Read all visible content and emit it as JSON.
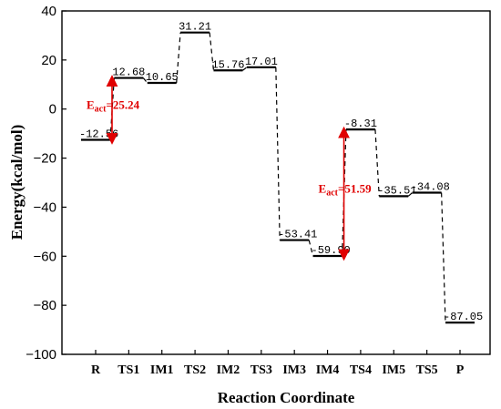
{
  "chart_data": {
    "type": "line",
    "style": "energy-profile",
    "title": "",
    "xlabel": "Reaction Coordinate",
    "ylabel": "Energy(kcal/mol)",
    "ylim": [
      -100,
      40
    ],
    "yticks": [
      -100,
      -80,
      -60,
      -40,
      -20,
      0,
      20,
      40
    ],
    "categories": [
      "R",
      "TS1",
      "IM1",
      "TS2",
      "IM2",
      "TS3",
      "IM3",
      "IM4",
      "TS4",
      "IM5",
      "TS5",
      "P"
    ],
    "levels": [
      {
        "name": "R",
        "value": -12.56,
        "label": "-12.56"
      },
      {
        "name": "TS1",
        "value": 12.68,
        "label": "12.68"
      },
      {
        "name": "IM1",
        "value": 10.65,
        "label": "10.65"
      },
      {
        "name": "TS2",
        "value": 31.21,
        "label": "31.21"
      },
      {
        "name": "IM2",
        "value": 15.76,
        "label": "15.76"
      },
      {
        "name": "TS3",
        "value": 17.01,
        "label": "17.01"
      },
      {
        "name": "IM3",
        "value": -53.41,
        "label": "-53.41"
      },
      {
        "name": "IM4",
        "value": -59.9,
        "label": "-59.90"
      },
      {
        "name": "TS4",
        "value": -8.31,
        "label": "-8.31"
      },
      {
        "name": "IM5",
        "value": -35.51,
        "label": "-35.51"
      },
      {
        "name": "TS5",
        "value": -34.08,
        "label": "-34.08"
      },
      {
        "name": "P",
        "value": -87.05,
        "label": "-87.05"
      }
    ],
    "annotations": [
      {
        "label_main": "E",
        "label_sub": "act",
        "value_text": "=25.24",
        "from": "R",
        "to": "TS1",
        "color": "#e00000"
      },
      {
        "label_main": "E",
        "label_sub": "act",
        "value_text": "=51.59",
        "from": "IM4",
        "to": "TS4",
        "color": "#e00000"
      }
    ],
    "grid": false,
    "line_color": "#000000"
  }
}
